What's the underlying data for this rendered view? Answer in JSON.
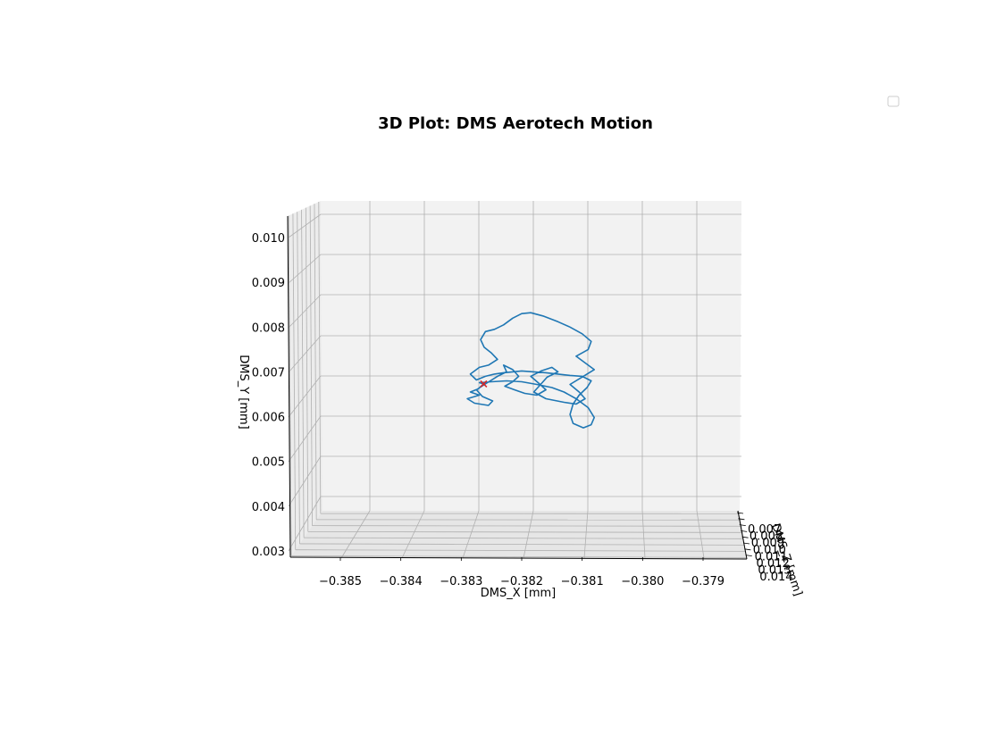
{
  "chart_data": {
    "type": "line",
    "title": "3D Plot: DMS Aerotech Motion",
    "xlabel": "DMS_X [mm]",
    "ylabel": "DMS_Y [mm]",
    "zlabel": "DMS_Z [mm]",
    "x_ticks": [
      "−0.385",
      "−0.384",
      "−0.383",
      "−0.382",
      "−0.381",
      "−0.380",
      "−0.379"
    ],
    "y_ticks": [
      "0.003",
      "0.004",
      "0.005",
      "0.006",
      "0.007",
      "0.008",
      "0.009",
      "0.010"
    ],
    "z_ticks": [
      "0.007",
      "0.008",
      "0.009",
      "0.010",
      "0.011",
      "0.012",
      "0.013",
      "0.014"
    ],
    "xlim": [
      -0.3859,
      -0.3787
    ],
    "ylim": [
      0.0029,
      0.0103
    ],
    "grid": true,
    "legend": "top-right, empty",
    "marker": {
      "label": "x",
      "color": "#d62728",
      "x": -0.38263,
      "y": 0.00673
    },
    "series": [
      {
        "color": "#1f77b4",
        "x": [
          -0.38263,
          -0.38272,
          -0.38285,
          -0.3827,
          -0.3829,
          -0.38278,
          -0.38255,
          -0.38248,
          -0.38265,
          -0.38275,
          -0.38258,
          -0.3824,
          -0.38225,
          -0.3823,
          -0.38215,
          -0.38205,
          -0.38215,
          -0.38228,
          -0.38212,
          -0.38195,
          -0.38175,
          -0.3816,
          -0.38172,
          -0.38185,
          -0.38168,
          -0.3815,
          -0.3814,
          -0.38158,
          -0.3817,
          -0.3818,
          -0.3816,
          -0.3813,
          -0.3811,
          -0.38095,
          -0.38105,
          -0.3812,
          -0.38098,
          -0.3808,
          -0.38095,
          -0.3811,
          -0.3809,
          -0.38085,
          -0.381,
          -0.3812,
          -0.3814,
          -0.38165,
          -0.38185,
          -0.382,
          -0.38215,
          -0.3823,
          -0.38245,
          -0.3826,
          -0.38268,
          -0.38262,
          -0.3825,
          -0.3824,
          -0.38255,
          -0.3827,
          -0.38285,
          -0.38275,
          -0.3826,
          -0.38245,
          -0.3823,
          -0.38215,
          -0.382,
          -0.3818,
          -0.3816,
          -0.3814,
          -0.3812,
          -0.381,
          -0.38085,
          -0.38092,
          -0.38105,
          -0.38115,
          -0.3812,
          -0.38115,
          -0.38098,
          -0.38085,
          -0.3808,
          -0.3809,
          -0.3811,
          -0.3813,
          -0.3815,
          -0.38175,
          -0.382,
          -0.38225,
          -0.3825,
          -0.3827,
          -0.38263
        ],
        "y": [
          0.00673,
          0.00662,
          0.00655,
          0.00648,
          0.0064,
          0.0063,
          0.00625,
          0.00635,
          0.00645,
          0.0066,
          0.00675,
          0.0069,
          0.007,
          0.00715,
          0.00705,
          0.0069,
          0.00678,
          0.00668,
          0.0066,
          0.00652,
          0.00648,
          0.0066,
          0.00675,
          0.0069,
          0.00702,
          0.0071,
          0.007,
          0.00688,
          0.0067,
          0.00655,
          0.0064,
          0.00632,
          0.00628,
          0.0064,
          0.00655,
          0.00672,
          0.0069,
          0.00705,
          0.0072,
          0.00735,
          0.0075,
          0.00768,
          0.00785,
          0.008,
          0.00812,
          0.00825,
          0.00832,
          0.0083,
          0.0082,
          0.00805,
          0.00795,
          0.0079,
          0.00772,
          0.00755,
          0.00742,
          0.00728,
          0.00715,
          0.0071,
          0.00695,
          0.00682,
          0.0069,
          0.00695,
          0.00698,
          0.007,
          0.00702,
          0.007,
          0.00698,
          0.00695,
          0.00692,
          0.0069,
          0.0068,
          0.00665,
          0.00648,
          0.00628,
          0.00605,
          0.00585,
          0.00575,
          0.00582,
          0.00598,
          0.0062,
          0.0064,
          0.00655,
          0.00665,
          0.00672,
          0.00678,
          0.0068,
          0.00678,
          0.00676,
          0.00673
        ]
      }
    ]
  },
  "legend": {
    "items": []
  }
}
